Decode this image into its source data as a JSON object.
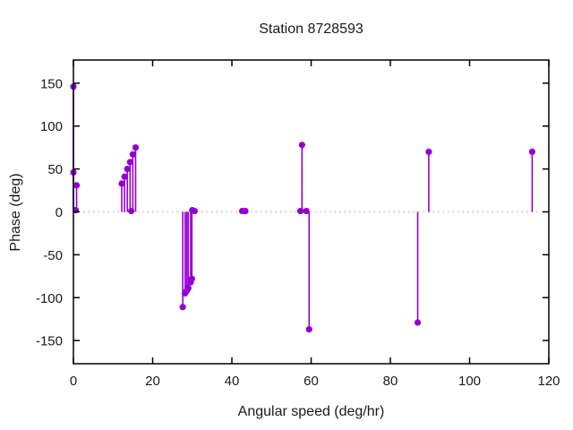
{
  "title": "Station 8728593",
  "colors": {
    "series": "#9400d3",
    "axis": "#000000",
    "zero_line": "#a8a8a8",
    "background": "#ffffff",
    "text": "#1a1a1a"
  },
  "chart_data": {
    "type": "scatter",
    "style": "impulse-stems-with-points",
    "title": "Station 8728593",
    "xlabel": "Angular speed (deg/hr)",
    "ylabel": "Phase (deg)",
    "xlim": [
      0,
      120
    ],
    "ylim": [
      -177,
      177
    ],
    "xticks": [
      0,
      20,
      40,
      60,
      80,
      100,
      120
    ],
    "yticks": [
      -150,
      -100,
      -50,
      0,
      50,
      100,
      150
    ],
    "grid": false,
    "zero_line_dotted": true,
    "legend": "none",
    "points": [
      [
        0,
        146
      ],
      [
        0,
        46
      ],
      [
        0.8,
        31
      ],
      [
        0.6,
        2
      ],
      [
        12.2,
        33
      ],
      [
        12.9,
        41
      ],
      [
        13.6,
        50
      ],
      [
        14.3,
        58
      ],
      [
        15.0,
        67
      ],
      [
        15.7,
        75
      ],
      [
        14.6,
        1
      ],
      [
        27.6,
        -111
      ],
      [
        28.2,
        -95
      ],
      [
        28.6,
        -92
      ],
      [
        29.0,
        -89
      ],
      [
        29.6,
        -82
      ],
      [
        29.9,
        -78
      ],
      [
        30.0,
        2
      ],
      [
        30.6,
        1
      ],
      [
        42.6,
        1
      ],
      [
        43.4,
        1
      ],
      [
        57.3,
        1
      ],
      [
        57.7,
        78
      ],
      [
        58.8,
        1
      ],
      [
        59.5,
        -137
      ],
      [
        86.9,
        -129
      ],
      [
        89.7,
        70
      ],
      [
        115.8,
        70
      ]
    ]
  }
}
